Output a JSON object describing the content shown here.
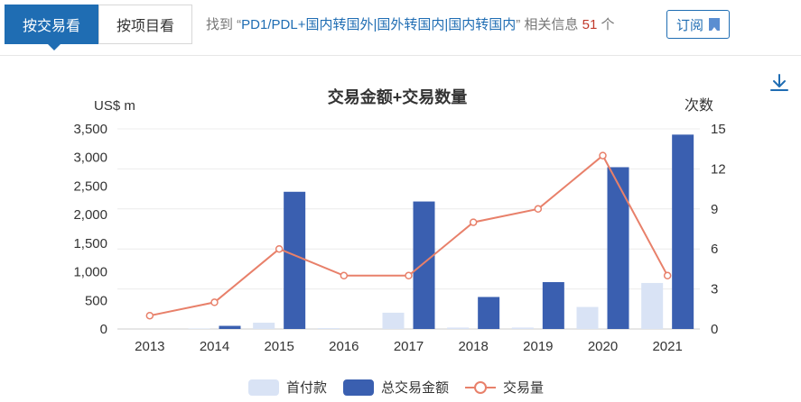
{
  "tabs": {
    "by_transaction": "按交易看",
    "by_project": "按项目看"
  },
  "search": {
    "prefix": "找到 “",
    "query": "PD1/PDL+国内转国外|国外转国内|国内转国内",
    "suffix": "” 相关信息 ",
    "count": "51",
    "unit": " 个"
  },
  "subscribe_label": "订阅",
  "icons": {
    "download": "download-icon",
    "subscribe": "bookmark-icon"
  },
  "chart_data": {
    "type": "bar",
    "title": "交易金额+交易数量",
    "left_axis_unit": "US$ m",
    "right_axis_unit": "次数",
    "categories": [
      "2013",
      "2014",
      "2015",
      "2016",
      "2017",
      "2018",
      "2019",
      "2020",
      "2021"
    ],
    "left_ticks": [
      "0",
      "500",
      "1,000",
      "1,500",
      "2,000",
      "2,500",
      "3,000",
      "3,500"
    ],
    "right_ticks": [
      "0",
      "3",
      "6",
      "9",
      "12",
      "15"
    ],
    "ylim_left": [
      0,
      3500
    ],
    "ylim_right": [
      0,
      15
    ],
    "series": [
      {
        "name": "首付款",
        "type": "bar",
        "axis": "left",
        "color": "#d9e3f5",
        "values": [
          0,
          10,
          110,
          15,
          285,
          25,
          25,
          385,
          805
        ]
      },
      {
        "name": "总交易金额",
        "type": "bar",
        "axis": "left",
        "color": "#3a5fb0",
        "values": [
          0,
          55,
          2400,
          0,
          2230,
          560,
          820,
          2830,
          3400
        ]
      },
      {
        "name": "交易量",
        "type": "line",
        "axis": "right",
        "color": "#e8806a",
        "values": [
          1,
          2,
          6,
          4,
          4,
          8,
          9,
          13,
          4
        ]
      }
    ],
    "legend_position": "bottom"
  }
}
